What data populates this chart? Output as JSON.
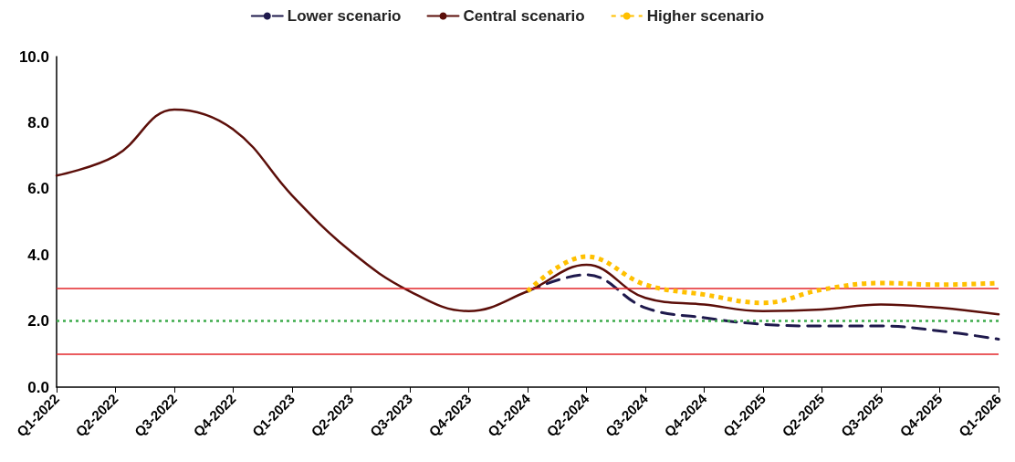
{
  "chart_data": {
    "type": "line",
    "categories": [
      "Q1-2022",
      "Q2-2022",
      "Q3-2022",
      "Q4-2022",
      "Q1-2023",
      "Q2-2023",
      "Q3-2023",
      "Q4-2023",
      "Q1-2024",
      "Q2-2024",
      "Q3-2024",
      "Q4-2024",
      "Q1-2025",
      "Q2-2025",
      "Q3-2025",
      "Q4-2025",
      "Q1-2026"
    ],
    "series": [
      {
        "name": "Lower scenario",
        "color": "#1f1a4d",
        "line_style": "dashed",
        "values": [
          null,
          null,
          null,
          null,
          null,
          null,
          null,
          null,
          2.9,
          3.4,
          2.4,
          2.1,
          1.9,
          1.85,
          1.85,
          1.7,
          1.45
        ]
      },
      {
        "name": "Central scenario",
        "color": "#5c0f0a",
        "line_style": "solid",
        "values": [
          6.4,
          7.0,
          8.4,
          7.8,
          5.8,
          4.1,
          2.9,
          2.3,
          2.9,
          3.7,
          2.7,
          2.5,
          2.3,
          2.35,
          2.5,
          2.4,
          2.2
        ]
      },
      {
        "name": "Higher scenario",
        "color": "#ffc000",
        "line_style": "dotted",
        "values": [
          null,
          null,
          null,
          null,
          null,
          null,
          null,
          null,
          2.9,
          3.95,
          3.1,
          2.8,
          2.55,
          2.95,
          3.15,
          3.1,
          3.15
        ]
      }
    ],
    "ylim": [
      0,
      10
    ],
    "yticks": [
      {
        "value": 0,
        "label": "0.0"
      },
      {
        "value": 2,
        "label": "2.0"
      },
      {
        "value": 4,
        "label": "4.0"
      },
      {
        "value": 6,
        "label": "6.0"
      },
      {
        "value": 8,
        "label": "8.0"
      },
      {
        "value": 10,
        "label": "10.0"
      }
    ],
    "ref_lines": [
      {
        "axis": "y",
        "value": 3,
        "color": "#e3262a",
        "line_style": "solid"
      },
      {
        "axis": "y",
        "value": 1,
        "color": "#e3262a",
        "line_style": "solid"
      },
      {
        "axis": "y",
        "value": 2,
        "color": "#3cab4b",
        "line_style": "dotted"
      }
    ],
    "grid": false,
    "legend": "top",
    "marker": "none"
  }
}
